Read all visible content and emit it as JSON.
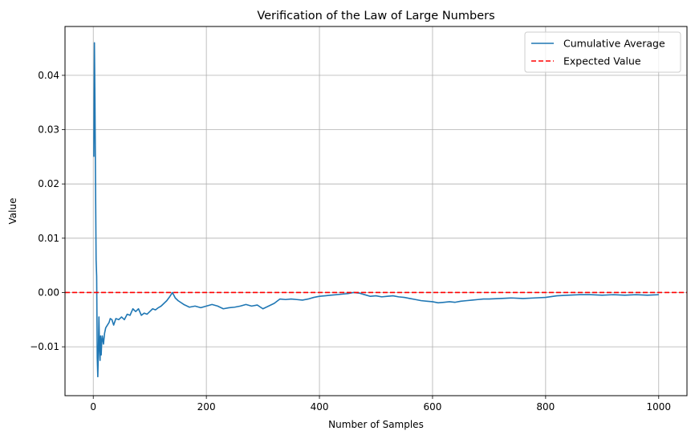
{
  "chart_data": {
    "type": "line",
    "title": "Verification of the Law of Large Numbers",
    "xlabel": "Number of Samples",
    "ylabel": "Value",
    "xlim": [
      -50,
      1050
    ],
    "ylim": [
      -0.019,
      0.049
    ],
    "xticks": [
      0,
      200,
      400,
      600,
      800,
      1000
    ],
    "xtick_labels": [
      "0",
      "200",
      "400",
      "600",
      "800",
      "1000"
    ],
    "yticks": [
      -0.01,
      0.0,
      0.01,
      0.02,
      0.03,
      0.04
    ],
    "ytick_labels": [
      "−0.01",
      "0.00",
      "0.01",
      "0.02",
      "0.03",
      "0.04"
    ],
    "grid": true,
    "legend": "top-right",
    "series": [
      {
        "name": "Cumulative Average",
        "color": "#1f77b4",
        "style": "solid",
        "x": [
          1,
          2,
          3,
          4,
          5,
          6,
          7,
          8,
          9,
          10,
          11,
          12,
          13,
          14,
          15,
          16,
          18,
          20,
          22,
          25,
          28,
          30,
          33,
          36,
          40,
          45,
          50,
          55,
          60,
          65,
          70,
          75,
          80,
          85,
          90,
          95,
          100,
          105,
          110,
          115,
          120,
          125,
          130,
          135,
          140,
          145,
          150,
          160,
          170,
          180,
          190,
          200,
          210,
          220,
          230,
          240,
          250,
          260,
          270,
          280,
          290,
          300,
          310,
          320,
          330,
          340,
          350,
          360,
          370,
          380,
          390,
          400,
          410,
          420,
          430,
          440,
          450,
          460,
          470,
          480,
          490,
          500,
          510,
          520,
          530,
          540,
          550,
          560,
          570,
          580,
          590,
          600,
          610,
          620,
          630,
          640,
          650,
          660,
          670,
          680,
          690,
          700,
          720,
          740,
          760,
          780,
          800,
          820,
          840,
          860,
          880,
          900,
          920,
          940,
          960,
          980,
          1000
        ],
        "y": [
          0.025,
          0.046,
          0.035,
          0.02,
          0.006,
          0.003,
          -0.012,
          -0.0155,
          -0.011,
          -0.0045,
          -0.01,
          -0.0125,
          -0.008,
          -0.0115,
          -0.009,
          -0.008,
          -0.0095,
          -0.0075,
          -0.0065,
          -0.006,
          -0.0055,
          -0.0048,
          -0.005,
          -0.006,
          -0.0048,
          -0.005,
          -0.0045,
          -0.005,
          -0.004,
          -0.0042,
          -0.003,
          -0.0035,
          -0.003,
          -0.0042,
          -0.0038,
          -0.004,
          -0.0035,
          -0.003,
          -0.0032,
          -0.0028,
          -0.0025,
          -0.002,
          -0.0015,
          -0.0008,
          0.0,
          -0.001,
          -0.0015,
          -0.0022,
          -0.0027,
          -0.0025,
          -0.0028,
          -0.0025,
          -0.0022,
          -0.0025,
          -0.003,
          -0.0028,
          -0.0027,
          -0.0025,
          -0.0022,
          -0.0025,
          -0.0023,
          -0.003,
          -0.0025,
          -0.002,
          -0.0012,
          -0.0013,
          -0.0012,
          -0.0013,
          -0.0014,
          -0.0012,
          -0.0009,
          -0.0007,
          -0.0006,
          -0.0005,
          -0.0004,
          -0.0003,
          -0.0002,
          0.0,
          -0.0001,
          -0.0004,
          -0.0007,
          -0.0006,
          -0.0008,
          -0.0007,
          -0.0006,
          -0.0008,
          -0.0009,
          -0.0011,
          -0.0013,
          -0.0015,
          -0.0016,
          -0.0017,
          -0.0019,
          -0.0018,
          -0.0017,
          -0.0018,
          -0.0016,
          -0.0015,
          -0.0014,
          -0.0013,
          -0.0012,
          -0.0012,
          -0.0011,
          -0.001,
          -0.0011,
          -0.001,
          -0.0009,
          -0.0006,
          -0.0005,
          -0.0004,
          -0.0004,
          -0.0005,
          -0.0004,
          -0.0005,
          -0.0004,
          -0.0005,
          -0.0004
        ]
      },
      {
        "name": "Expected Value",
        "color": "#ff0000",
        "style": "dashed",
        "y": 0.0
      }
    ]
  }
}
